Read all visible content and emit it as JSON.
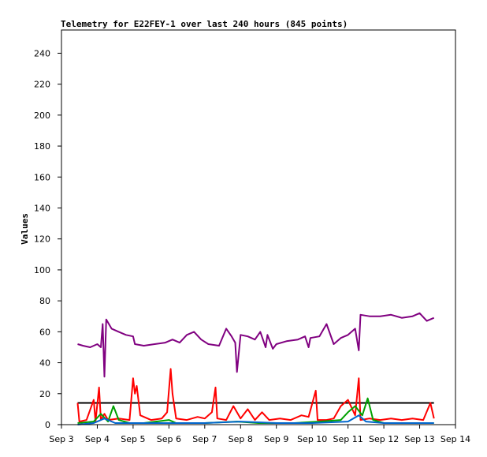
{
  "chart_data": {
    "type": "line",
    "title": "Telemetry for E22FEY-1 over last 240 hours (845 points)",
    "xlabel": "",
    "ylabel": "Values",
    "xlim": [
      3.0,
      14.0
    ],
    "ylim": [
      0,
      255
    ],
    "x_tick_labels": [
      {
        "value": 3,
        "label": "Sep 3"
      },
      {
        "value": 4,
        "label": "Sep 4"
      },
      {
        "value": 5,
        "label": "Sep 5"
      },
      {
        "value": 6,
        "label": "Sep 6"
      },
      {
        "value": 7,
        "label": "Sep 7"
      },
      {
        "value": 8,
        "label": "Sep 8"
      },
      {
        "value": 9,
        "label": "Sep 9"
      },
      {
        "value": 10,
        "label": "Sep 10"
      },
      {
        "value": 11,
        "label": "Sep 11"
      },
      {
        "value": 12,
        "label": "Sep 12"
      },
      {
        "value": 13,
        "label": "Sep 13"
      },
      {
        "value": 14,
        "label": "Sep 14"
      }
    ],
    "y_ticks": [
      0,
      20,
      40,
      60,
      80,
      100,
      120,
      140,
      160,
      180,
      200,
      220,
      240
    ],
    "grid": false,
    "legend": "none",
    "series": [
      {
        "color": "#000000",
        "points": [
          [
            3.45,
            14
          ],
          [
            13.4,
            14
          ]
        ]
      },
      {
        "color": "#800080",
        "points": [
          [
            3.45,
            52
          ],
          [
            3.6,
            51
          ],
          [
            3.8,
            50
          ],
          [
            4.0,
            52
          ],
          [
            4.1,
            50
          ],
          [
            4.15,
            65
          ],
          [
            4.2,
            31
          ],
          [
            4.25,
            68
          ],
          [
            4.4,
            62
          ],
          [
            4.6,
            60
          ],
          [
            4.8,
            58
          ],
          [
            5.0,
            57
          ],
          [
            5.05,
            52
          ],
          [
            5.3,
            51
          ],
          [
            5.6,
            52
          ],
          [
            5.9,
            53
          ],
          [
            6.1,
            55
          ],
          [
            6.3,
            53
          ],
          [
            6.5,
            58
          ],
          [
            6.7,
            60
          ],
          [
            6.9,
            55
          ],
          [
            7.1,
            52
          ],
          [
            7.4,
            51
          ],
          [
            7.6,
            62
          ],
          [
            7.75,
            57
          ],
          [
            7.85,
            53
          ],
          [
            7.9,
            34
          ],
          [
            8.0,
            58
          ],
          [
            8.2,
            57
          ],
          [
            8.4,
            55
          ],
          [
            8.55,
            60
          ],
          [
            8.7,
            50
          ],
          [
            8.75,
            58
          ],
          [
            8.9,
            49
          ],
          [
            9.0,
            52
          ],
          [
            9.3,
            54
          ],
          [
            9.6,
            55
          ],
          [
            9.8,
            57
          ],
          [
            9.9,
            50
          ],
          [
            9.95,
            56
          ],
          [
            10.2,
            57
          ],
          [
            10.4,
            65
          ],
          [
            10.6,
            52
          ],
          [
            10.8,
            56
          ],
          [
            11.0,
            58
          ],
          [
            11.2,
            62
          ],
          [
            11.3,
            48
          ],
          [
            11.35,
            71
          ],
          [
            11.6,
            70
          ],
          [
            11.9,
            70
          ],
          [
            12.2,
            71
          ],
          [
            12.5,
            69
          ],
          [
            12.8,
            70
          ],
          [
            13.0,
            72
          ],
          [
            13.2,
            67
          ],
          [
            13.4,
            69
          ]
        ]
      },
      {
        "color": "#ff0000",
        "points": [
          [
            3.45,
            14
          ],
          [
            3.5,
            2
          ],
          [
            3.7,
            3
          ],
          [
            3.9,
            16
          ],
          [
            3.95,
            2
          ],
          [
            4.05,
            24
          ],
          [
            4.1,
            3
          ],
          [
            4.2,
            7
          ],
          [
            4.3,
            3
          ],
          [
            4.6,
            4
          ],
          [
            4.9,
            3
          ],
          [
            5.0,
            30
          ],
          [
            5.05,
            20
          ],
          [
            5.1,
            25
          ],
          [
            5.2,
            6
          ],
          [
            5.5,
            3
          ],
          [
            5.8,
            4
          ],
          [
            5.95,
            8
          ],
          [
            6.05,
            36
          ],
          [
            6.1,
            20
          ],
          [
            6.2,
            4
          ],
          [
            6.5,
            3
          ],
          [
            6.8,
            5
          ],
          [
            7.0,
            4
          ],
          [
            7.2,
            8
          ],
          [
            7.3,
            24
          ],
          [
            7.35,
            4
          ],
          [
            7.6,
            3
          ],
          [
            7.8,
            12
          ],
          [
            8.0,
            4
          ],
          [
            8.2,
            10
          ],
          [
            8.4,
            3
          ],
          [
            8.6,
            8
          ],
          [
            8.8,
            3
          ],
          [
            9.1,
            4
          ],
          [
            9.4,
            3
          ],
          [
            9.7,
            6
          ],
          [
            9.9,
            5
          ],
          [
            10.1,
            22
          ],
          [
            10.15,
            3
          ],
          [
            10.4,
            3
          ],
          [
            10.6,
            4
          ],
          [
            10.8,
            12
          ],
          [
            11.0,
            16
          ],
          [
            11.2,
            6
          ],
          [
            11.3,
            30
          ],
          [
            11.35,
            3
          ],
          [
            11.6,
            4
          ],
          [
            11.9,
            3
          ],
          [
            12.2,
            4
          ],
          [
            12.5,
            3
          ],
          [
            12.8,
            4
          ],
          [
            13.1,
            3
          ],
          [
            13.3,
            14
          ],
          [
            13.4,
            4
          ]
        ]
      },
      {
        "color": "#00a000",
        "points": [
          [
            3.45,
            1
          ],
          [
            3.9,
            2
          ],
          [
            4.1,
            7
          ],
          [
            4.3,
            2
          ],
          [
            4.45,
            12
          ],
          [
            4.6,
            3
          ],
          [
            4.9,
            1
          ],
          [
            5.3,
            1
          ],
          [
            6.0,
            3
          ],
          [
            6.2,
            1
          ],
          [
            7.0,
            1
          ],
          [
            7.9,
            2
          ],
          [
            8.5,
            1
          ],
          [
            9.5,
            1
          ],
          [
            10.2,
            2
          ],
          [
            10.8,
            3
          ],
          [
            11.0,
            8
          ],
          [
            11.2,
            12
          ],
          [
            11.4,
            6
          ],
          [
            11.55,
            17
          ],
          [
            11.7,
            3
          ],
          [
            12.0,
            1
          ],
          [
            12.6,
            1
          ],
          [
            13.4,
            1
          ]
        ]
      },
      {
        "color": "#0066cc",
        "points": [
          [
            3.45,
            0
          ],
          [
            3.9,
            1
          ],
          [
            4.2,
            4
          ],
          [
            4.5,
            1
          ],
          [
            5.0,
            1
          ],
          [
            6.0,
            1
          ],
          [
            7.0,
            1
          ],
          [
            8.0,
            2
          ],
          [
            9.0,
            1
          ],
          [
            10.0,
            1
          ],
          [
            11.0,
            2
          ],
          [
            11.3,
            6
          ],
          [
            11.5,
            2
          ],
          [
            12.0,
            1
          ],
          [
            13.0,
            1
          ],
          [
            13.4,
            1
          ]
        ]
      }
    ]
  }
}
